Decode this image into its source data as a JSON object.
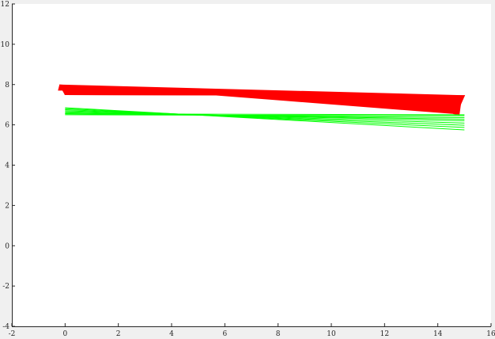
{
  "chart_data": {
    "type": "line",
    "title": "",
    "xlabel": "",
    "ylabel": "",
    "xlim": [
      -2,
      16
    ],
    "ylim": [
      -4,
      12
    ],
    "grid": false,
    "x_ticks": [
      "-2",
      "0",
      "2",
      "4",
      "6",
      "8",
      "10",
      "12",
      "14",
      "16"
    ],
    "y_ticks": [
      "-4",
      "-2",
      "0",
      "2",
      "4",
      "6",
      "8",
      "10",
      "12"
    ],
    "colors": {
      "background": "#f0f0f0",
      "axes": "#ffffff",
      "axis_line": "#262626",
      "red": "#ff0000",
      "green": "#00ff00"
    },
    "polygons": [
      {
        "color": "#ff0000",
        "points": [
          [
            -0.2,
            7.98
          ],
          [
            -0.25,
            7.72
          ],
          [
            -0.05,
            7.72
          ],
          [
            0.0,
            7.5
          ],
          [
            15.0,
            7.45
          ],
          [
            14.6,
            6.55
          ],
          [
            14.8,
            6.5
          ],
          [
            14.9,
            7.45
          ],
          [
            15.0,
            7.45
          ]
        ]
      },
      {
        "color": "#ff0000",
        "points": [
          [
            -0.2,
            7.98
          ],
          [
            4.5,
            7.6
          ],
          [
            14.7,
            6.55
          ],
          [
            15.0,
            7.45
          ],
          [
            0.0,
            7.5
          ]
        ]
      }
    ],
    "series": [
      {
        "color": "#00ff00",
        "x": [
          0.0,
          15.0
        ],
        "y": [
          6.85,
          5.75
        ]
      },
      {
        "color": "#00ff00",
        "x": [
          0.0,
          15.0
        ],
        "y": [
          6.8,
          5.87
        ]
      },
      {
        "color": "#00ff00",
        "x": [
          0.0,
          15.0
        ],
        "y": [
          6.75,
          5.98
        ]
      },
      {
        "color": "#00ff00",
        "x": [
          0.0,
          15.0
        ],
        "y": [
          6.7,
          6.09
        ]
      },
      {
        "color": "#00ff00",
        "x": [
          0.0,
          15.0
        ],
        "y": [
          6.65,
          6.2
        ]
      },
      {
        "color": "#00ff00",
        "x": [
          0.0,
          15.0
        ],
        "y": [
          6.6,
          6.28
        ]
      },
      {
        "color": "#00ff00",
        "x": [
          0.0,
          15.0
        ],
        "y": [
          6.55,
          6.36
        ]
      },
      {
        "color": "#00ff00",
        "x": [
          0.0,
          15.0
        ],
        "y": [
          6.5,
          6.45
        ]
      },
      {
        "color": "#00ff00",
        "x": [
          0.0,
          15.0
        ],
        "y": [
          6.55,
          6.5
        ]
      }
    ]
  }
}
